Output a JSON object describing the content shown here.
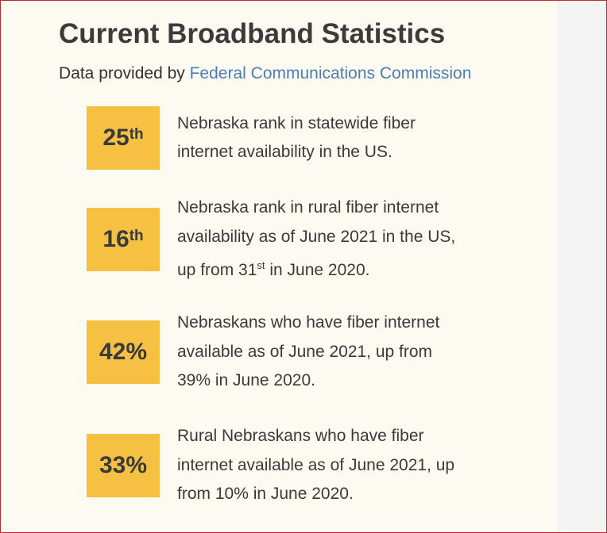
{
  "header": {
    "title": "Current Broadband Statistics",
    "subtitle_prefix": "Data provided by",
    "source": "Federal Communications Commission"
  },
  "stats": [
    {
      "badge": {
        "value": "25",
        "suffix": "th"
      },
      "lines": [
        [
          {
            "text": "Nebraska rank in statewide fiber"
          }
        ],
        [
          {
            "text": "internet availability in the US."
          }
        ]
      ]
    },
    {
      "badge": {
        "value": "16",
        "suffix": "th"
      },
      "lines": [
        [
          {
            "text": "Nebraska rank in rural fiber internet"
          }
        ],
        [
          {
            "text": "availability as of June 2021 in the US,"
          }
        ],
        [
          {
            "text": "up from 31"
          },
          {
            "sup": "st"
          },
          {
            "text": " in June 2020."
          }
        ]
      ]
    },
    {
      "badge": {
        "value": "42%"
      },
      "lines": [
        [
          {
            "text": "Nebraskans who have fiber internet"
          }
        ],
        [
          {
            "text": "available as of June 2021, up from"
          }
        ],
        [
          {
            "text": "39% in June 2020."
          }
        ]
      ]
    },
    {
      "badge": {
        "value": "33%"
      },
      "lines": [
        [
          {
            "text": "Rural Nebraskans who have fiber"
          }
        ],
        [
          {
            "text": "internet available as of June 2021, up"
          }
        ],
        [
          {
            "text": "from 10% in June 2020."
          }
        ]
      ]
    }
  ]
}
